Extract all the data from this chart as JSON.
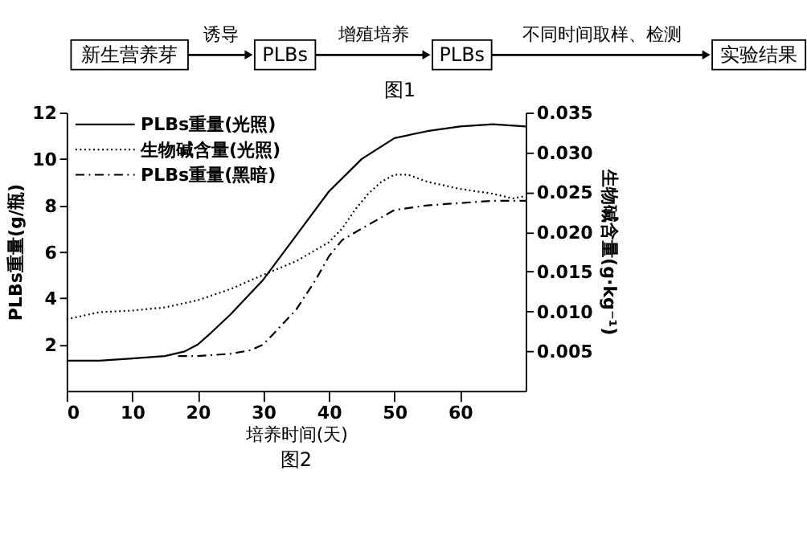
{
  "chart_data": {
    "type": "line",
    "xlabel": "培养时间(天)",
    "ylabel": "PLBs重量(g/瓶)",
    "y2label": "生物碱含量(g·kg⁻¹)",
    "annotations": [
      "新生营养芽",
      "诱导",
      "PLBs",
      "增殖培养",
      "PLBs",
      "不同时间取样、检测",
      "实验结果",
      "图1",
      "图2"
    ],
    "xlim": [
      0,
      70
    ],
    "xticks": [
      0,
      10,
      20,
      30,
      40,
      50,
      60
    ],
    "ylim": [
      0,
      12
    ],
    "yticks": [
      2,
      4,
      6,
      8,
      10,
      12
    ],
    "y2lim": [
      0,
      0.035
    ],
    "y2ticks": [
      0.005,
      {
        "value": 0.01,
        "label": "0.010"
      },
      0.015,
      {
        "value": 0.02,
        "label": "0.020"
      },
      0.025,
      {
        "value": 0.03,
        "label": "0.030"
      },
      0.035
    ],
    "grid": false,
    "legend": "top left",
    "marker": "none",
    "series": [
      {
        "name": "PLBs重量(光照)",
        "color": "#000000",
        "line_style": "solid",
        "x": [
          0,
          5,
          10,
          15,
          18,
          20,
          22,
          25,
          30,
          35,
          40,
          45,
          50,
          55,
          60,
          65,
          70
        ],
        "values": [
          1.3,
          1.3,
          1.4,
          1.5,
          1.7,
          2.0,
          2.5,
          3.3,
          4.8,
          6.7,
          8.6,
          10.0,
          10.9,
          11.2,
          11.4,
          11.5,
          11.4
        ]
      },
      {
        "name": "生物碱含量(光照)",
        "color": "#000000",
        "line_style": "dotted",
        "axis": "y2",
        "x": [
          0,
          5,
          10,
          15,
          20,
          25,
          30,
          35,
          40,
          42,
          44,
          46,
          48,
          50,
          52,
          55,
          60,
          65,
          68,
          70
        ],
        "values": [
          0.009,
          0.0099,
          0.0101,
          0.0105,
          0.0114,
          0.0128,
          0.0146,
          0.0163,
          0.0187,
          0.0204,
          0.0228,
          0.0248,
          0.0263,
          0.0272,
          0.0272,
          0.0263,
          0.0254,
          0.0248,
          0.0242,
          0.0245
        ]
      },
      {
        "name": "PLBs重量(黑暗)",
        "color": "#000000",
        "line_style": "dashdot",
        "x": [
          17,
          20,
          25,
          28,
          30,
          32,
          35,
          38,
          40,
          42,
          45,
          50,
          55,
          60,
          65,
          70
        ],
        "values": [
          1.5,
          1.5,
          1.6,
          1.75,
          2.0,
          2.6,
          3.5,
          4.8,
          5.8,
          6.5,
          7.0,
          7.8,
          8.0,
          8.1,
          8.2,
          8.2
        ]
      }
    ]
  }
}
